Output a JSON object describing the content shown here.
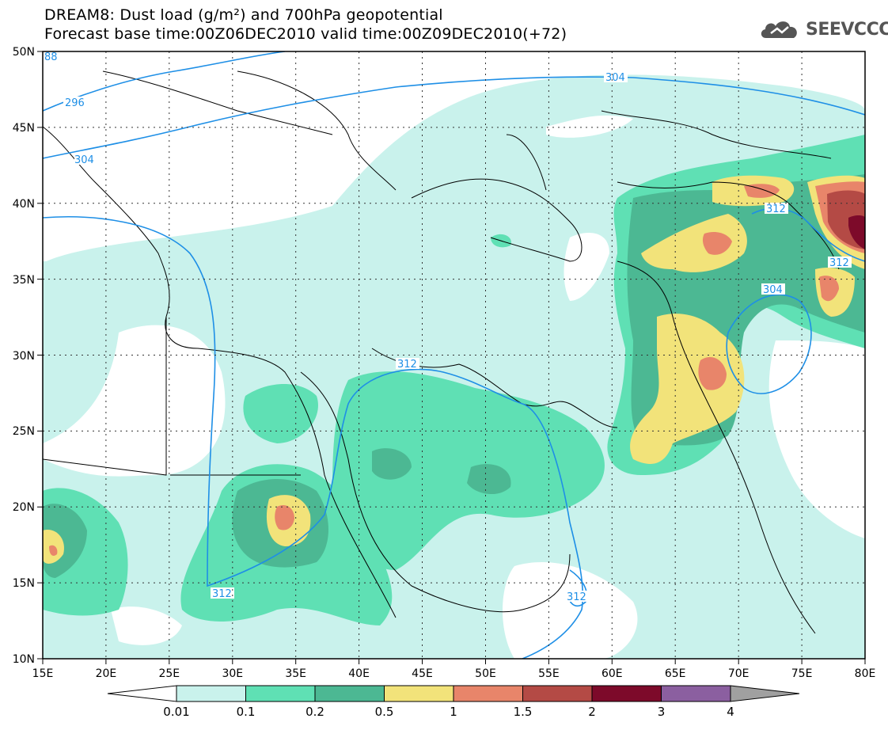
{
  "title_line1": "DREAM8: Dust load (g/m²) and 700hPa geopotential",
  "title_line2": "Forecast base time:00Z06DEC2010 valid time:00Z09DEC2010(+72)",
  "logo_text": "SEEVCCC",
  "lat_labels": [
    "50N",
    "45N",
    "40N",
    "35N",
    "30N",
    "25N",
    "20N",
    "15N",
    "10N"
  ],
  "lon_labels": [
    "15E",
    "20E",
    "25E",
    "30E",
    "35E",
    "40E",
    "45E",
    "50E",
    "55E",
    "60E",
    "65E",
    "70E",
    "75E",
    "80E"
  ],
  "contour_labels": [
    "304",
    "296",
    "304",
    "312",
    "312",
    "312",
    "304",
    "312",
    "312",
    "88"
  ],
  "colorbar": {
    "labels": [
      "0.01",
      "0.1",
      "0.2",
      "0.5",
      "1",
      "1.5",
      "2",
      "3",
      "4"
    ],
    "colors": [
      "#ffffff",
      "#c9f2ec",
      "#5fe0b4",
      "#4cb893",
      "#f2e37a",
      "#e8856a",
      "#b44a45",
      "#7d0a2a",
      "#8b5fa0",
      "#a0a0a0"
    ]
  },
  "styles": {
    "dust_colors": {
      "l1": "#c9f2ec",
      "l2": "#5fe0b4",
      "l3": "#4cb893",
      "l4": "#f2e37a",
      "l5": "#e8856a",
      "l6": "#b44a45",
      "l7": "#7d0a2a"
    },
    "contour_color": "#1e8fe6"
  }
}
